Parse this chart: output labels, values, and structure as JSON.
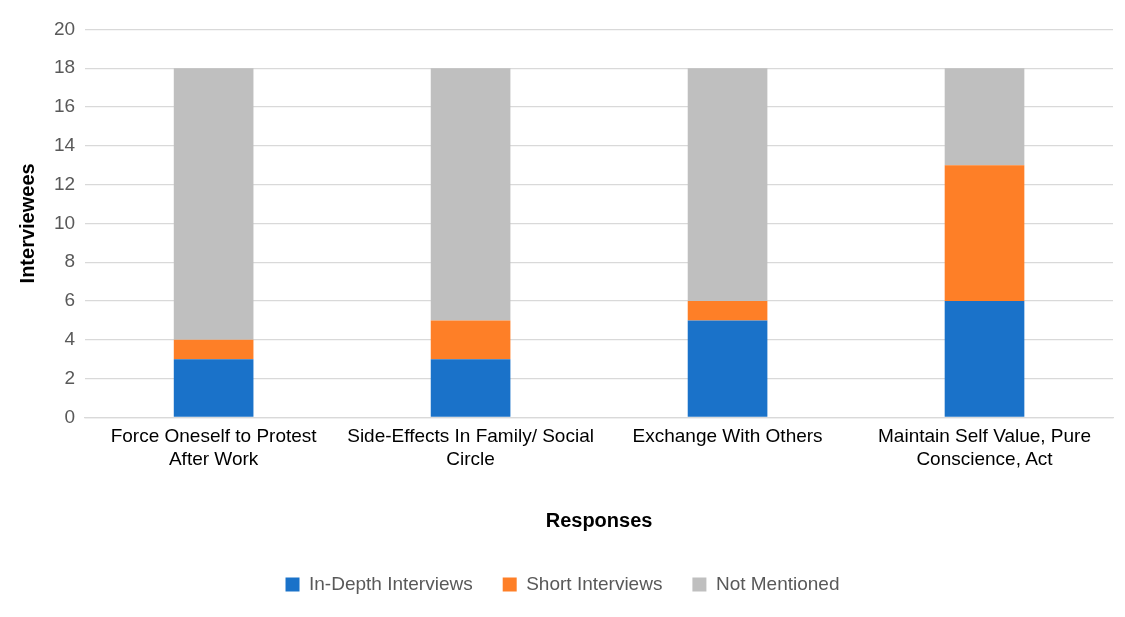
{
  "chart_data": {
    "type": "bar",
    "stacked": true,
    "xlabel": "Responses",
    "ylabel": "Interviewees",
    "categories": [
      "Force Oneself to Protest After Work",
      "Side-Effects In Family/ Social Circle",
      "Exchange With Others",
      "Maintain Self Value, Pure Conscience, Act"
    ],
    "series": [
      {
        "name": "In-Depth Interviews",
        "color": "#1a72c9",
        "values": [
          3,
          3,
          5,
          6
        ]
      },
      {
        "name": "Short Interviews",
        "color": "#fe7f27",
        "values": [
          1,
          2,
          1,
          7
        ]
      },
      {
        "name": "Not Mentioned",
        "color": "#bfbfbf",
        "values": [
          14,
          13,
          12,
          5
        ]
      }
    ],
    "ylim": [
      0,
      20
    ],
    "yticks": [
      0,
      2,
      4,
      6,
      8,
      10,
      12,
      14,
      16,
      18,
      20
    ],
    "grid": "y",
    "legend": "bottom"
  }
}
